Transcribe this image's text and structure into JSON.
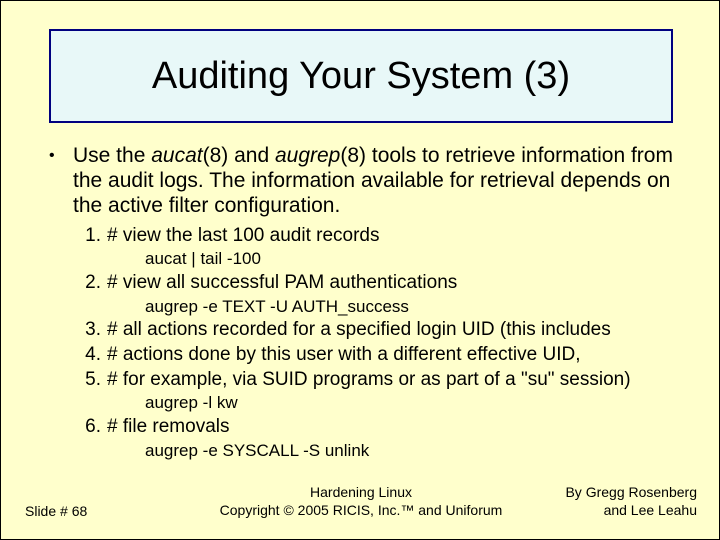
{
  "colors": {
    "background": "#ffffcc",
    "title_border": "#000080",
    "title_bg": "#e8f8f8",
    "text": "#000000"
  },
  "title": "Auditing Your System (3)",
  "bullet": {
    "pre": "Use the ",
    "tool1": "aucat",
    "mid1": "(8) and ",
    "tool2": "augrep",
    "post": "(8) tools to retrieve information from the audit logs. The information available for retrieval depends on the active filter configuration."
  },
  "items": {
    "n1_num": "1.",
    "n1_text": "# view the last 100 audit records",
    "cmd1": "aucat | tail -100",
    "n2_num": "2.",
    "n2_text": "# view all successful PAM authentications",
    "cmd2": "augrep -e TEXT -U AUTH_success",
    "n3_num": "3.",
    "n3_text": "# all actions recorded for a specified login UID (this includes",
    "n4_num": "4.",
    "n4_text": "# actions done by this user with a different effective UID,",
    "n5_num": "5.",
    "n5_text": "# for example, via SUID programs or as part of a \"su\" session)",
    "cmd3": "augrep -l kw",
    "n6_num": "6.",
    "n6_text": "# file removals",
    "cmd4": "augrep -e SYSCALL -S unlink"
  },
  "footer": {
    "left": "Slide # 68",
    "center1": "Hardening Linux",
    "center2": "Copyright © 2005 RICIS, Inc.™ and Uniforum",
    "right1": "By Gregg Rosenberg",
    "right2": "and Lee Leahu"
  }
}
